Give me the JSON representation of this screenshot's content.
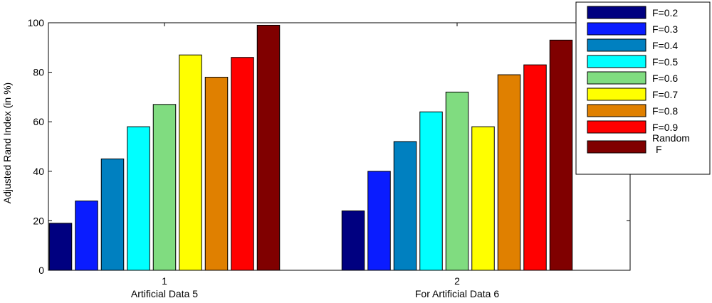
{
  "chart_data": {
    "type": "bar",
    "categories": [
      "1",
      "2"
    ],
    "category_sublabels": [
      "Artificial Data 5",
      "For Artificial Data 6"
    ],
    "ylabel": "Adjusted Rand Index (in %)",
    "ylim": [
      0,
      100
    ],
    "yticks": [
      0,
      20,
      40,
      60,
      80,
      100
    ],
    "grid": false,
    "legend_position": "top-right",
    "series": [
      {
        "name": "F=0.2",
        "color": "#000080",
        "values": [
          19,
          24
        ]
      },
      {
        "name": "F=0.3",
        "color": "#0a1cff",
        "values": [
          28,
          40
        ]
      },
      {
        "name": "F=0.4",
        "color": "#0080c0",
        "values": [
          45,
          52
        ]
      },
      {
        "name": "F=0.5",
        "color": "#00ffff",
        "values": [
          58,
          64
        ]
      },
      {
        "name": "F=0.6",
        "color": "#80dc80",
        "values": [
          67,
          72
        ]
      },
      {
        "name": "F=0.7",
        "color": "#ffff00",
        "values": [
          87,
          58
        ]
      },
      {
        "name": "F=0.8",
        "color": "#e08000",
        "values": [
          78,
          79
        ]
      },
      {
        "name": "F=0.9",
        "color": "#ff0000",
        "values": [
          86,
          83
        ]
      },
      {
        "name": "Random F",
        "color": "#800000",
        "values": [
          99,
          93
        ]
      }
    ]
  }
}
